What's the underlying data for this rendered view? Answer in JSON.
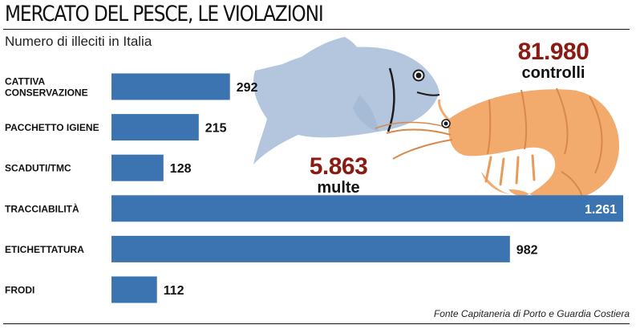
{
  "title": "MERCATO DEL PESCE, LE VIOLAZIONI",
  "subtitle": "Numero di illeciti in Italia",
  "source": "Fonte Capitaneria di Porto e Guardia Costiera",
  "highlights": {
    "controls": {
      "value": "81.980",
      "label": "controlli"
    },
    "fines": {
      "value": "5.863",
      "label": "multe"
    }
  },
  "colors": {
    "bar": "#3b74b1",
    "highlight_number": "#8b1a12",
    "fish": "#b3c6de",
    "shrimp": "#f2ab6d"
  },
  "icons": [
    "fish-illustration",
    "shrimp-illustration"
  ],
  "chart_data": {
    "type": "bar",
    "orientation": "horizontal",
    "title": "MERCATO DEL PESCE, LE VIOLAZIONI",
    "subtitle": "Numero di illeciti in Italia",
    "categories": [
      [
        "CATTIVA",
        "CONSERVAZIONE"
      ],
      [
        "PACCHETTO IGIENE"
      ],
      [
        "SCADUTI/TMC"
      ],
      [
        "TRACCIABILITÀ"
      ],
      [
        "ETICHETTATURA"
      ],
      [
        "FRODI"
      ]
    ],
    "values": [
      292,
      215,
      128,
      1261,
      982,
      112
    ],
    "value_labels": [
      "292",
      "215",
      "128",
      "1.261",
      "982",
      "112"
    ],
    "xlim": [
      0,
      1261
    ],
    "grid": false,
    "legend": "none"
  }
}
